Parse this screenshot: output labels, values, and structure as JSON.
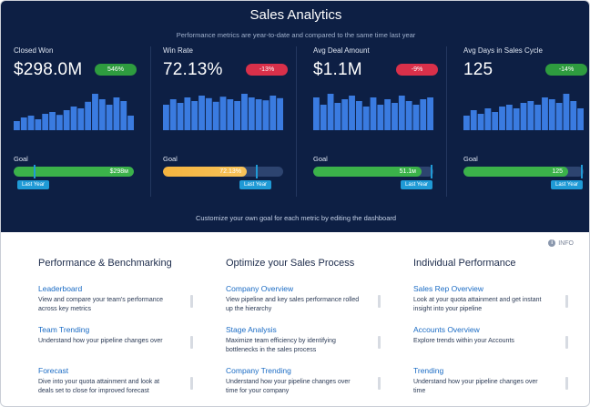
{
  "hero": {
    "title": "Sales Analytics",
    "subtitle": "Performance metrics are year-to-date and compared to the same time last year",
    "footer": "Customize your own goal for each metric by editing the dashboard"
  },
  "metrics": [
    {
      "label": "Closed Won",
      "value": "$298.0M",
      "badge": "546%",
      "badge_status": "positive",
      "bars": [
        0.25,
        0.35,
        0.4,
        0.3,
        0.45,
        0.5,
        0.42,
        0.55,
        0.65,
        0.6,
        0.78,
        1.0,
        0.85,
        0.7,
        0.9,
        0.8,
        0.4
      ],
      "goal_label": "Goal",
      "goal_value": "$298м",
      "goal_progress": 1.0,
      "goal_color": "green",
      "last_year_label": "Last Year",
      "last_year_position": 0.17
    },
    {
      "label": "Win Rate",
      "value": "72.13%",
      "badge": "-13%",
      "badge_status": "negative",
      "bars": [
        0.7,
        0.85,
        0.75,
        0.9,
        0.8,
        0.95,
        0.88,
        0.78,
        0.92,
        0.85,
        0.8,
        1.0,
        0.9,
        0.85,
        0.82,
        0.95,
        0.88
      ],
      "goal_label": "Goal",
      "goal_value": "72.13%",
      "goal_progress": 0.7,
      "goal_color": "orange",
      "last_year_label": "Last Year",
      "last_year_position": 0.77
    },
    {
      "label": "Avg Deal Amount",
      "value": "$1.1M",
      "badge": "-9%",
      "badge_status": "negative",
      "bars": [
        0.9,
        0.7,
        1.0,
        0.75,
        0.85,
        0.95,
        0.8,
        0.65,
        0.9,
        0.7,
        0.85,
        0.75,
        0.95,
        0.8,
        0.7,
        0.85,
        0.9
      ],
      "goal_label": "Goal",
      "goal_value": "51.1м",
      "goal_progress": 0.9,
      "goal_color": "green",
      "last_year_label": "Last Year",
      "last_year_position": 0.98
    },
    {
      "label": "Avg Days in Sales Cycle",
      "value": "125",
      "badge": "-14%",
      "badge_status": "positive",
      "bars": [
        0.4,
        0.55,
        0.45,
        0.6,
        0.5,
        0.65,
        0.7,
        0.6,
        0.75,
        0.8,
        0.7,
        0.9,
        0.85,
        0.75,
        1.0,
        0.8,
        0.6
      ],
      "goal_label": "Goal",
      "goal_value": "125",
      "goal_progress": 0.87,
      "goal_color": "green",
      "last_year_label": "Last Year",
      "last_year_position": 0.98
    }
  ],
  "info": {
    "label": "INFO",
    "icon": "info-icon"
  },
  "columns": [
    {
      "title": "Performance & Benchmarking",
      "items": [
        {
          "link": "Leaderboard",
          "desc": "View and compare your team's performance across key metrics"
        },
        {
          "link": "Team Trending",
          "desc": "Understand how your pipeline changes over"
        },
        {
          "link": "Forecast",
          "desc": "Dive into your quota attainment and look at deals set to close for improved forecast"
        }
      ]
    },
    {
      "title": "Optimize your Sales Process",
      "items": [
        {
          "link": "Company Overview",
          "desc": "View pipeline and key sales performance rolled up the hierarchy"
        },
        {
          "link": "Stage Analysis",
          "desc": "Maximize team efficiency by identifying bottlenecks in the sales process"
        },
        {
          "link": "Company Trending",
          "desc": "Understand how your pipeline changes over time for your company"
        }
      ]
    },
    {
      "title": "Individual Performance",
      "items": [
        {
          "link": "Sales Rep Overview",
          "desc": "Look at your quota attainment and get instant insight into your pipeline"
        },
        {
          "link": "Accounts Overview",
          "desc": "Explore trends within your Accounts"
        },
        {
          "link": "Trending",
          "desc": "Understand how your pipeline changes over time"
        }
      ]
    }
  ],
  "colors": {
    "hero_bg": "#0d1f44",
    "bar": "#3a7be0",
    "positive": "#2e9c3f",
    "negative": "#d9304a",
    "link": "#1a6bc4",
    "last_year": "#1f9ad6"
  }
}
